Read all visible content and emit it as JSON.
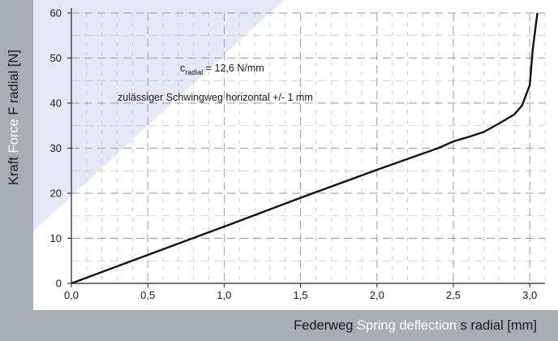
{
  "chart_data": {
    "type": "line",
    "x": [
      0.0,
      0.5,
      1.0,
      1.5,
      2.0,
      2.4,
      2.5,
      2.6,
      2.7,
      2.8,
      2.9,
      2.95,
      3.0,
      3.02,
      3.05
    ],
    "series": [
      {
        "values": [
          0.0,
          6.3,
          12.6,
          19.0,
          25.2,
          30.0,
          31.5,
          32.5,
          33.6,
          35.5,
          37.5,
          39.5,
          44.0,
          52.0,
          60.0
        ]
      }
    ],
    "xlim": [
      0.0,
      3.1
    ],
    "ylim": [
      0,
      60
    ],
    "x_ticks": [
      "0,0",
      "0,5",
      "1,0",
      "1,5",
      "2,0",
      "2,5",
      "3,0"
    ],
    "x_tick_values": [
      0,
      0.5,
      1.0,
      1.5,
      2.0,
      2.5,
      3.0
    ],
    "y_ticks": [
      "0",
      "10",
      "20",
      "30",
      "40",
      "50",
      "60"
    ],
    "y_tick_values": [
      0,
      10,
      20,
      30,
      40,
      50,
      60
    ],
    "grid": true,
    "xlabel": {
      "prefix": "Federweg ",
      "highlight": "Spring deflection",
      "suffix": " s radial [mm]"
    },
    "ylabel": {
      "prefix": "Kraft ",
      "highlight": "Force",
      "suffix": " F radial [N]"
    },
    "annotations": {
      "stiffness_symbol": "c",
      "stiffness_subscript": "radial",
      "stiffness_value": " = 12,6 N/mm",
      "travel_note": "zulässiger Schwingweg horizontal +/- 1 mm"
    }
  },
  "colors": {
    "background": "#a9adb4",
    "plot_area": "#ffffff",
    "accent_band": "#e6e9f5",
    "line": "#111111",
    "grid": "#b8b8b8",
    "highlight_text": "#ffffff"
  }
}
